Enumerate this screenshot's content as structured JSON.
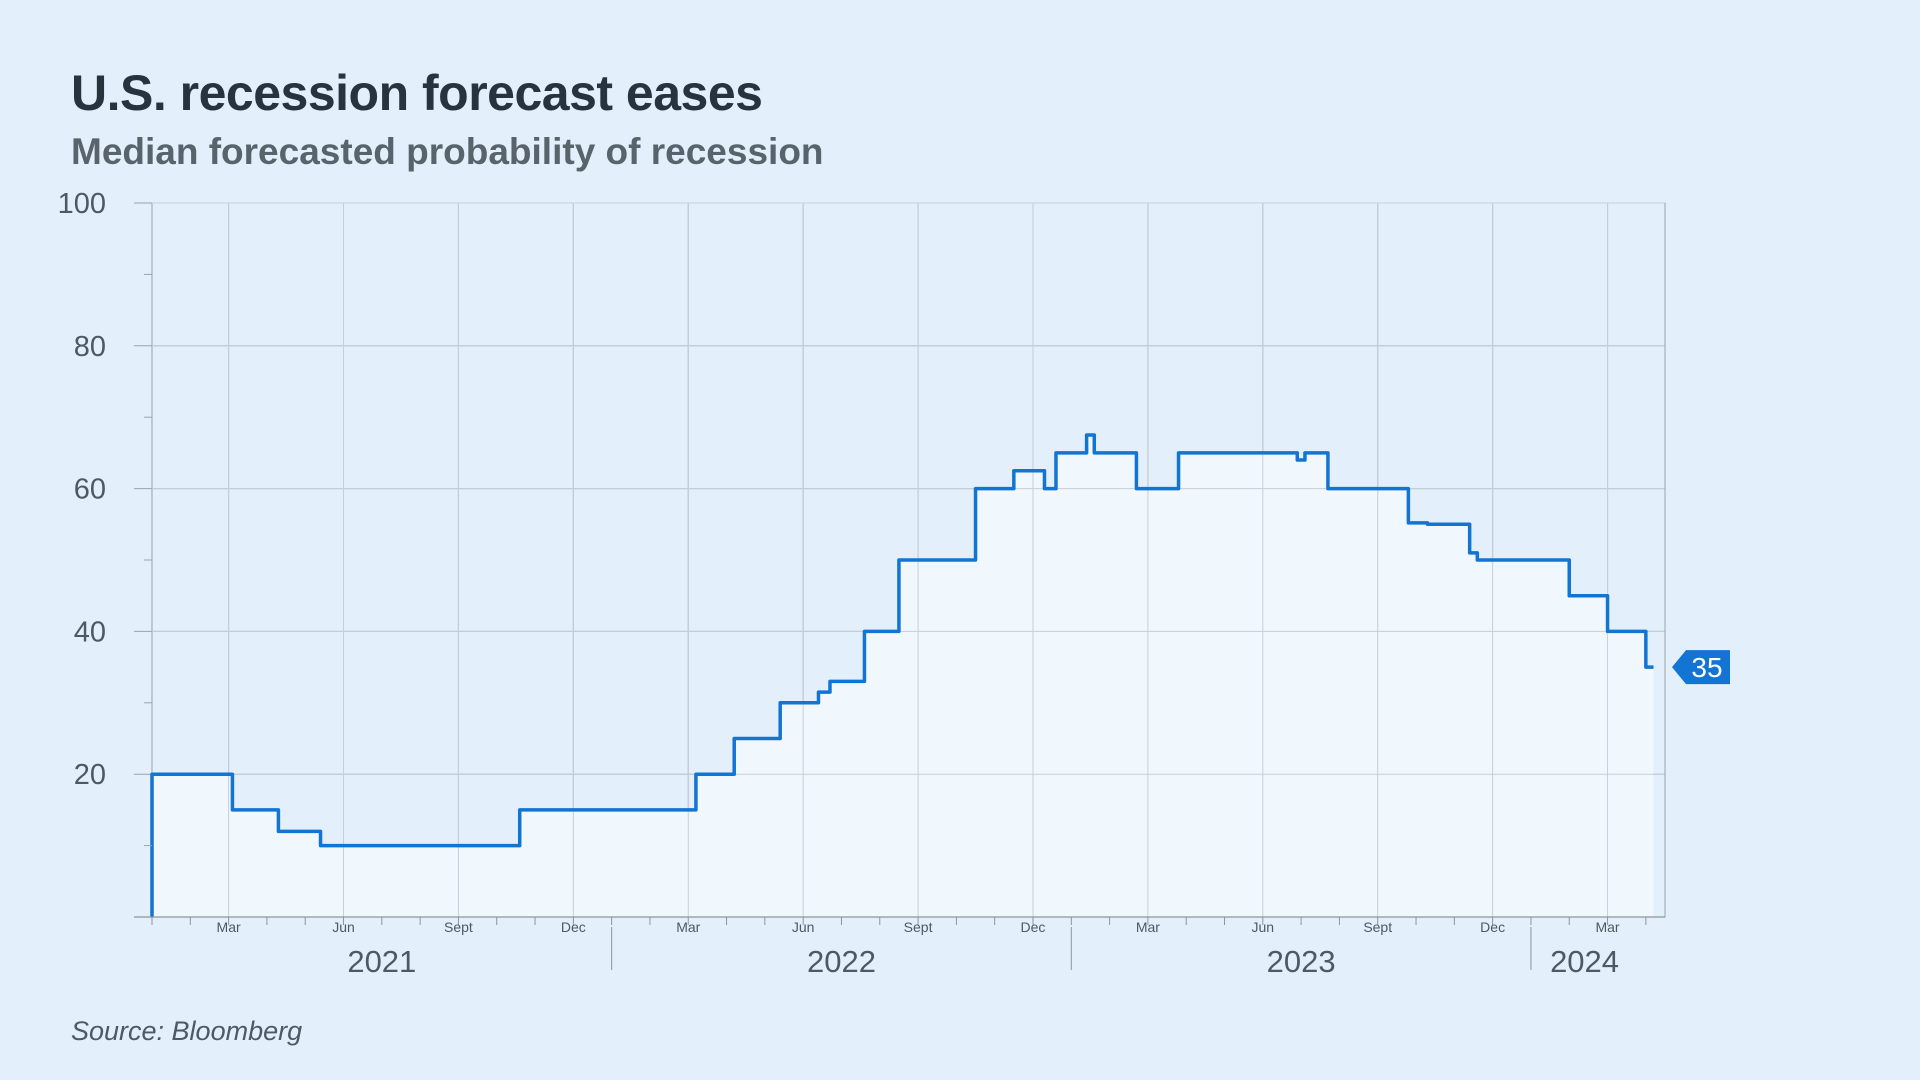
{
  "title": "U.S. recession forecast eases",
  "subtitle": "Median forecasted probability of recession",
  "source": "Source: Bloomberg",
  "chart_data": {
    "type": "line",
    "step": true,
    "title": "U.S. recession forecast eases",
    "subtitle": "Median forecasted probability of recession",
    "xlabel": "",
    "ylabel": "",
    "x_unit": "months since 2021-01-01",
    "xlim": [
      0,
      39.5
    ],
    "ylim": [
      0,
      100
    ],
    "yticks": [
      20,
      40,
      60,
      80,
      100
    ],
    "grid": true,
    "line_color": "#1274d3",
    "fill_color": "#f2f8fd",
    "month_ticks": [
      {
        "x": 2,
        "label": "Mar"
      },
      {
        "x": 5,
        "label": "Jun"
      },
      {
        "x": 8,
        "label": "Sept"
      },
      {
        "x": 11,
        "label": "Dec"
      },
      {
        "x": 14,
        "label": "Mar"
      },
      {
        "x": 17,
        "label": "Jun"
      },
      {
        "x": 20,
        "label": "Sept"
      },
      {
        "x": 23,
        "label": "Dec"
      },
      {
        "x": 26,
        "label": "Mar"
      },
      {
        "x": 29,
        "label": "Jun"
      },
      {
        "x": 32,
        "label": "Sept"
      },
      {
        "x": 35,
        "label": "Dec"
      },
      {
        "x": 38,
        "label": "Mar"
      }
    ],
    "years": [
      {
        "label": "2021",
        "x": 6
      },
      {
        "label": "2022",
        "x": 18
      },
      {
        "label": "2023",
        "x": 30
      },
      {
        "label": "2024",
        "x": 37.4
      }
    ],
    "series": [
      {
        "name": "Median forecasted probability of recession",
        "points": [
          [
            0,
            20
          ],
          [
            2.1,
            15
          ],
          [
            3.3,
            12
          ],
          [
            4.4,
            10
          ],
          [
            9.6,
            15
          ],
          [
            14.2,
            20
          ],
          [
            15.2,
            25
          ],
          [
            16.4,
            30
          ],
          [
            17.4,
            31.5
          ],
          [
            17.7,
            33
          ],
          [
            18.6,
            40
          ],
          [
            19.5,
            50
          ],
          [
            21.5,
            60
          ],
          [
            22.5,
            62.5
          ],
          [
            23.3,
            60
          ],
          [
            23.6,
            65
          ],
          [
            24.4,
            67.5
          ],
          [
            24.6,
            65
          ],
          [
            25.7,
            60
          ],
          [
            26.8,
            65
          ],
          [
            29.9,
            64
          ],
          [
            30.1,
            65
          ],
          [
            30.7,
            60
          ],
          [
            32.8,
            55.2
          ],
          [
            33.3,
            55
          ],
          [
            34.4,
            51
          ],
          [
            34.6,
            50
          ],
          [
            37.0,
            45
          ],
          [
            38.0,
            40
          ],
          [
            39.0,
            35
          ],
          [
            39.2,
            35
          ]
        ]
      }
    ],
    "last_value_label": "35"
  }
}
